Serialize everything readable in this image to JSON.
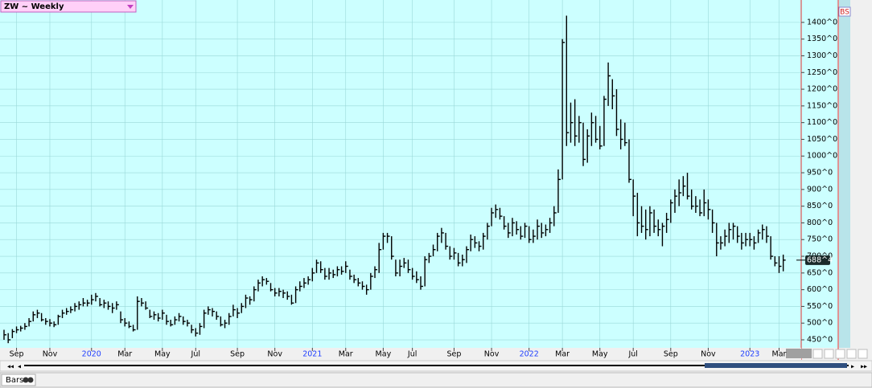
{
  "chart_data": {
    "type": "hlc-bar",
    "title": "ZW ~ Weekly",
    "legend_icon": "BS",
    "last_price_label": "688^4",
    "bottom_tab": "Bars",
    "color": "#000000",
    "grid": true,
    "categories": [
      null,
      null,
      null,
      "Sep",
      null,
      null,
      null,
      null,
      null,
      null,
      null,
      "Nov",
      null,
      null,
      null,
      null,
      null,
      null,
      null,
      null,
      null,
      "2020",
      null,
      null,
      null,
      null,
      null,
      null,
      null,
      "Mar",
      null,
      null,
      null,
      null,
      null,
      null,
      null,
      null,
      "May",
      null,
      null,
      null,
      null,
      null,
      null,
      null,
      "Jul",
      null,
      null,
      null,
      null,
      null,
      null,
      null,
      null,
      null,
      "Sep",
      null,
      null,
      null,
      null,
      null,
      null,
      null,
      null,
      "Nov",
      null,
      null,
      null,
      null,
      null,
      null,
      null,
      null,
      "2021",
      null,
      null,
      null,
      null,
      null,
      null,
      null,
      "Mar",
      null,
      null,
      null,
      null,
      null,
      null,
      null,
      null,
      "May",
      null,
      null,
      null,
      null,
      null,
      null,
      "Jul",
      null,
      null,
      null,
      null,
      null,
      null,
      null,
      null,
      null,
      "Sep",
      null,
      null,
      null,
      null,
      null,
      null,
      null,
      null,
      "Nov",
      null,
      null,
      null,
      null,
      null,
      null,
      null,
      null,
      "2022",
      null,
      null,
      null,
      null,
      null,
      null,
      null,
      "Mar",
      null,
      null,
      null,
      null,
      null,
      null,
      null,
      null,
      "May",
      null,
      null,
      null,
      null,
      null,
      null,
      null,
      "Jul",
      null,
      null,
      null,
      null,
      null,
      null,
      null,
      null,
      "Sep",
      null,
      null,
      null,
      null,
      null,
      null,
      null,
      null,
      "Nov",
      null,
      null,
      null,
      null,
      null,
      null,
      null,
      null,
      null,
      "2023",
      null,
      null,
      null,
      null,
      null,
      null,
      "Mar",
      null
    ],
    "high": [
      480,
      470,
      482,
      490,
      492,
      500,
      515,
      535,
      540,
      530,
      515,
      512,
      505,
      525,
      540,
      545,
      550,
      560,
      565,
      575,
      570,
      585,
      590,
      575,
      570,
      565,
      560,
      565,
      535,
      515,
      505,
      495,
      580,
      575,
      565,
      540,
      535,
      530,
      540,
      525,
      510,
      520,
      530,
      520,
      510,
      495,
      485,
      500,
      540,
      550,
      545,
      535,
      520,
      510,
      530,
      555,
      545,
      560,
      585,
      580,
      610,
      630,
      640,
      635,
      620,
      605,
      605,
      600,
      595,
      585,
      610,
      625,
      635,
      640,
      665,
      690,
      685,
      665,
      665,
      660,
      670,
      670,
      685,
      660,
      645,
      635,
      625,
      615,
      650,
      670,
      740,
      770,
      770,
      760,
      690,
      690,
      695,
      690,
      665,
      655,
      640,
      700,
      710,
      735,
      770,
      785,
      770,
      730,
      725,
      710,
      705,
      730,
      765,
      760,
      745,
      770,
      800,
      845,
      855,
      845,
      820,
      800,
      815,
      805,
      790,
      800,
      790,
      780,
      810,
      800,
      795,
      815,
      850,
      960,
      1350,
      1420,
      1160,
      1170,
      1120,
      1100,
      1080,
      1130,
      1120,
      1090,
      1180,
      1280,
      1230,
      1200,
      1110,
      1100,
      1050,
      930,
      890,
      850,
      840,
      850,
      840,
      810,
      800,
      830,
      870,
      900,
      930,
      940,
      950,
      900,
      880,
      870,
      900,
      870,
      840,
      800,
      760,
      780,
      800,
      800,
      790,
      770,
      770,
      770,
      760,
      780,
      795,
      790,
      760,
      700,
      700,
      705
    ],
    "low": [
      450,
      440,
      455,
      470,
      475,
      480,
      490,
      505,
      515,
      505,
      495,
      490,
      488,
      495,
      515,
      525,
      530,
      535,
      540,
      550,
      550,
      555,
      565,
      550,
      545,
      540,
      530,
      540,
      500,
      490,
      485,
      475,
      480,
      550,
      540,
      515,
      510,
      505,
      510,
      495,
      490,
      495,
      505,
      495,
      490,
      470,
      460,
      465,
      485,
      525,
      520,
      510,
      490,
      485,
      495,
      520,
      515,
      530,
      545,
      555,
      565,
      595,
      610,
      615,
      595,
      580,
      580,
      575,
      570,
      555,
      560,
      595,
      605,
      615,
      625,
      650,
      650,
      630,
      630,
      635,
      640,
      645,
      650,
      630,
      620,
      610,
      600,
      585,
      600,
      635,
      650,
      720,
      740,
      690,
      640,
      640,
      665,
      650,
      630,
      620,
      600,
      610,
      680,
      700,
      715,
      740,
      720,
      690,
      690,
      670,
      670,
      680,
      715,
      725,
      715,
      720,
      750,
      790,
      815,
      810,
      780,
      755,
      760,
      765,
      750,
      755,
      740,
      740,
      750,
      755,
      760,
      770,
      790,
      830,
      930,
      1030,
      1040,
      1030,
      1040,
      970,
      980,
      1030,
      1040,
      1020,
      1030,
      1150,
      1140,
      1060,
      1020,
      1030,
      920,
      820,
      760,
      770,
      750,
      760,
      770,
      760,
      730,
      770,
      800,
      830,
      850,
      880,
      870,
      840,
      830,
      820,
      820,
      810,
      770,
      700,
      720,
      730,
      740,
      750,
      740,
      720,
      730,
      730,
      720,
      740,
      750,
      740,
      690,
      670,
      650,
      655
    ],
    "close": [
      465,
      450,
      475,
      480,
      485,
      490,
      505,
      525,
      530,
      510,
      505,
      500,
      495,
      520,
      530,
      535,
      540,
      550,
      555,
      560,
      560,
      570,
      580,
      555,
      560,
      550,
      545,
      555,
      510,
      500,
      490,
      480,
      565,
      560,
      545,
      520,
      525,
      515,
      530,
      505,
      495,
      510,
      520,
      505,
      500,
      480,
      470,
      490,
      530,
      540,
      535,
      520,
      495,
      500,
      520,
      540,
      530,
      550,
      575,
      570,
      600,
      620,
      630,
      625,
      600,
      590,
      595,
      590,
      580,
      560,
      600,
      610,
      620,
      630,
      650,
      680,
      660,
      640,
      650,
      645,
      660,
      655,
      670,
      640,
      630,
      620,
      610,
      600,
      640,
      660,
      720,
      760,
      760,
      700,
      650,
      670,
      680,
      660,
      640,
      630,
      610,
      690,
      700,
      720,
      760,
      770,
      730,
      700,
      710,
      680,
      690,
      720,
      750,
      740,
      730,
      760,
      790,
      830,
      840,
      820,
      790,
      770,
      800,
      780,
      760,
      790,
      750,
      760,
      790,
      770,
      780,
      800,
      830,
      930,
      1340,
      1070,
      1100,
      1060,
      1100,
      990,
      1060,
      1100,
      1050,
      1030,
      1170,
      1240,
      1180,
      1080,
      1050,
      1040,
      930,
      880,
      800,
      790,
      780,
      830,
      790,
      780,
      790,
      810,
      860,
      880,
      890,
      910,
      880,
      850,
      850,
      830,
      860,
      840,
      800,
      740,
      740,
      760,
      780,
      790,
      760,
      740,
      750,
      750,
      740,
      770,
      780,
      760,
      700,
      680,
      670,
      688.5
    ],
    "ylim": [
      426,
      1467
    ],
    "yticks": [
      {
        "value": 450,
        "label": "450^0"
      },
      {
        "value": 500,
        "label": "500^0"
      },
      {
        "value": 550,
        "label": "550^0"
      },
      {
        "value": 600,
        "label": "600^0"
      },
      {
        "value": 650,
        "label": "650^0"
      },
      {
        "value": 700,
        "label": "700^0"
      },
      {
        "value": 750,
        "label": "750^0"
      },
      {
        "value": 800,
        "label": "800^0"
      },
      {
        "value": 850,
        "label": "850^0"
      },
      {
        "value": 900,
        "label": "900^0"
      },
      {
        "value": 950,
        "label": "950^0"
      },
      {
        "value": 1000,
        "label": "1000^0"
      },
      {
        "value": 1050,
        "label": "1050^0"
      },
      {
        "value": 1100,
        "label": "1100^0"
      },
      {
        "value": 1150,
        "label": "1150^0"
      },
      {
        "value": 1200,
        "label": "1200^0"
      },
      {
        "value": 1250,
        "label": "1250^0"
      },
      {
        "value": 1300,
        "label": "1300^0"
      },
      {
        "value": 1350,
        "label": "1350^0"
      },
      {
        "value": 1400,
        "label": "1400^0"
      }
    ]
  }
}
